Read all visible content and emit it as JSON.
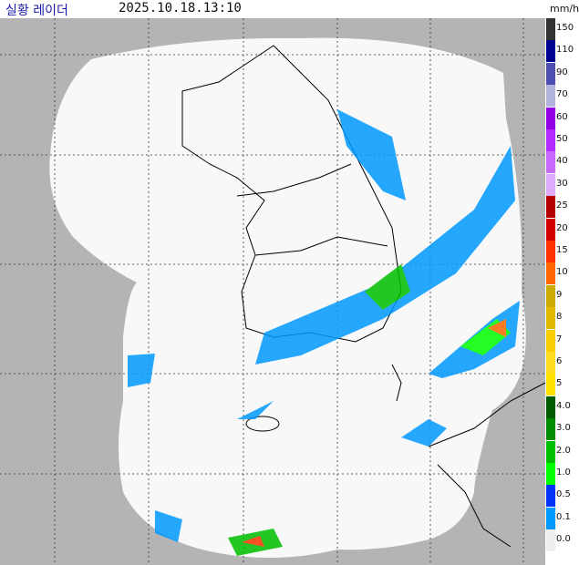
{
  "header": {
    "title": "실황 레이더",
    "timestamp": "2025.10.18.13:10",
    "unit": "mm/h"
  },
  "legend": [
    {
      "label": "150",
      "color": "#333333"
    },
    {
      "label": "110",
      "color": "#000390"
    },
    {
      "label": "90",
      "color": "#4c4eb1"
    },
    {
      "label": "70",
      "color": "#b3b4de"
    },
    {
      "label": "60",
      "color": "#9300e4"
    },
    {
      "label": "50",
      "color": "#b329ff"
    },
    {
      "label": "40",
      "color": "#c969ff"
    },
    {
      "label": "30",
      "color": "#dfa9ff"
    },
    {
      "label": "25",
      "color": "#b40000"
    },
    {
      "label": "20",
      "color": "#d20000"
    },
    {
      "label": "15",
      "color": "#ff3200"
    },
    {
      "label": "10",
      "color": "#ff6600"
    },
    {
      "label": "9",
      "color": "#ccaa00"
    },
    {
      "label": "8",
      "color": "#e0b900"
    },
    {
      "label": "7",
      "color": "#f9cd00"
    },
    {
      "label": "6",
      "color": "#ffdc1f"
    },
    {
      "label": "5",
      "color": "#ffe100"
    },
    {
      "label": "4.0",
      "color": "#005a00"
    },
    {
      "label": "3.0",
      "color": "#008c00"
    },
    {
      "label": "2.0",
      "color": "#00be00"
    },
    {
      "label": "1.0",
      "color": "#00ff00"
    },
    {
      "label": "0.5",
      "color": "#0033f5"
    },
    {
      "label": "0.1",
      "color": "#0099ff"
    },
    {
      "label": "0.0",
      "color": "#eeeeee"
    }
  ]
}
